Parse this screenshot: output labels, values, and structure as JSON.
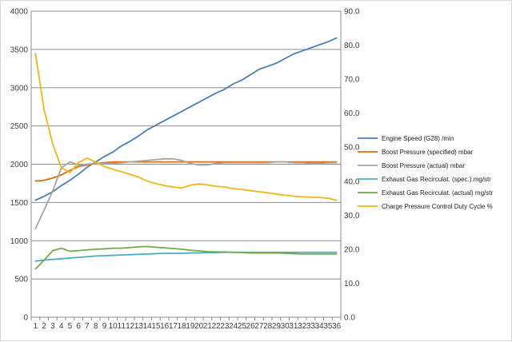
{
  "chart_data": {
    "type": "line",
    "title": "",
    "categories": [
      "1",
      "2",
      "3",
      "4",
      "5",
      "6",
      "7",
      "8",
      "9",
      "10",
      "11",
      "12",
      "13",
      "14",
      "15",
      "16",
      "17",
      "18",
      "19",
      "20",
      "21",
      "22",
      "23",
      "24",
      "25",
      "26",
      "27",
      "28",
      "29",
      "30",
      "31",
      "32",
      "33",
      "34",
      "35",
      "36"
    ],
    "y_left": {
      "min": 0,
      "max": 4000,
      "ticks": [
        "0",
        "500",
        "1000",
        "1500",
        "2000",
        "2500",
        "3000",
        "3500",
        "4000"
      ]
    },
    "y_right": {
      "min": 0,
      "max": 90,
      "ticks": [
        "0.0",
        "10.0",
        "20.0",
        "30.0",
        "40.0",
        "50.0",
        "60.0",
        "70.0",
        "80.0",
        "90.0"
      ]
    },
    "grid": true,
    "legend_position": "right",
    "series": [
      {
        "name": "Engine Speed (G28)  /min",
        "color": "#4a7ebb",
        "axis": "left",
        "values": [
          1530,
          1580,
          1640,
          1720,
          1790,
          1870,
          1960,
          2030,
          2100,
          2160,
          2240,
          2300,
          2370,
          2450,
          2510,
          2570,
          2630,
          2690,
          2750,
          2810,
          2870,
          2930,
          2980,
          3050,
          3100,
          3170,
          3240,
          3280,
          3320,
          3380,
          3440,
          3480,
          3520,
          3560,
          3600,
          3650
        ]
      },
      {
        "name": "Boost Pressure (specified)  mbar",
        "color": "#e46c0a",
        "axis": "left",
        "values": [
          1780,
          1790,
          1820,
          1860,
          1920,
          1970,
          1990,
          2010,
          2020,
          2030,
          2030,
          2030,
          2030,
          2030,
          2030,
          2030,
          2030,
          2030,
          2030,
          2030,
          2030,
          2030,
          2030,
          2030,
          2030,
          2030,
          2030,
          2030,
          2030,
          2030,
          2030,
          2030,
          2030,
          2030,
          2030,
          2030
        ]
      },
      {
        "name": "Boost Pressure (actual)  mbar",
        "color": "#a5a5a5",
        "axis": "left",
        "values": [
          1160,
          1400,
          1650,
          1950,
          2030,
          1990,
          2000,
          2010,
          2010,
          2010,
          2020,
          2030,
          2040,
          2050,
          2060,
          2070,
          2070,
          2050,
          2010,
          1990,
          1990,
          2010,
          2020,
          2020,
          2020,
          2020,
          2020,
          2020,
          2030,
          2030,
          2020,
          2020,
          2010,
          2010,
          2020,
          2020
        ]
      },
      {
        "name": "Exhaust Gas Recirculat. (spec.)  mg/str",
        "color": "#4bacc6",
        "axis": "right",
        "values": [
          16.5,
          16.8,
          17.0,
          17.2,
          17.4,
          17.6,
          17.8,
          18.0,
          18.1,
          18.2,
          18.3,
          18.4,
          18.5,
          18.6,
          18.7,
          18.8,
          18.8,
          18.8,
          18.9,
          18.9,
          19.0,
          19.0,
          19.1,
          19.1,
          19.1,
          19.1,
          19.1,
          19.1,
          19.1,
          19.1,
          19.1,
          19.1,
          19.1,
          19.1,
          19.1,
          19.1
        ]
      },
      {
        "name": "Exhaust Gas Recirculat. (actual)  mg/str",
        "color": "#70ad47",
        "axis": "right",
        "values": [
          14.2,
          16.8,
          19.6,
          20.3,
          19.4,
          19.6,
          19.8,
          20.0,
          20.1,
          20.3,
          20.3,
          20.5,
          20.7,
          20.8,
          20.6,
          20.4,
          20.2,
          20.0,
          19.7,
          19.5,
          19.3,
          19.2,
          19.2,
          19.1,
          19.0,
          18.9,
          18.9,
          18.9,
          18.9,
          18.8,
          18.7,
          18.6,
          18.6,
          18.6,
          18.6,
          18.6
        ]
      },
      {
        "name": "Charge Pressure Control Duty Cycle  %",
        "color": "#f2b712",
        "axis": "right",
        "values": [
          77.5,
          61.0,
          51.0,
          44.0,
          42.5,
          45.5,
          46.8,
          45.6,
          44.3,
          43.5,
          42.8,
          42.0,
          41.2,
          40.0,
          39.3,
          38.7,
          38.3,
          38.0,
          38.8,
          39.2,
          38.9,
          38.5,
          38.3,
          37.8,
          37.6,
          37.2,
          36.9,
          36.6,
          36.2,
          35.9,
          35.6,
          35.4,
          35.3,
          35.2,
          35.0,
          34.4
        ]
      }
    ]
  }
}
